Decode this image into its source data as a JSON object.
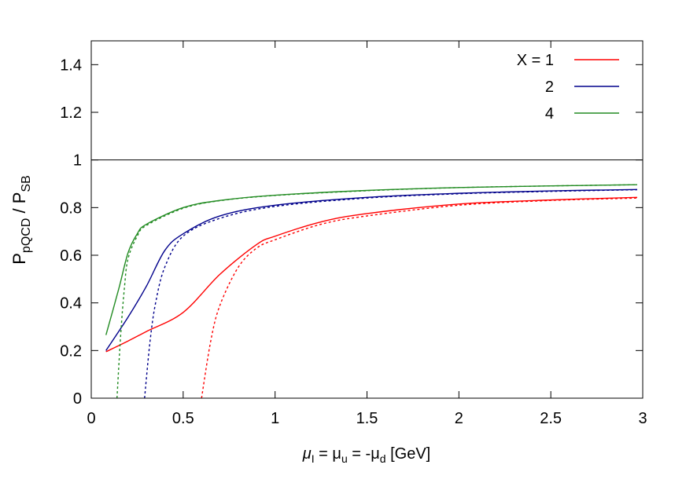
{
  "chart_data": {
    "type": "line",
    "xlabel": {
      "main": "μ",
      "sub1": "I",
      "eq1": " = μ",
      "sub2": "u",
      "eq2": " = -μ",
      "sub3": "d",
      "unit": " [GeV]"
    },
    "ylabel": {
      "p1": "P",
      "sub1": "pQCD",
      "mid": " / P",
      "sub2": "SB"
    },
    "xlim": [
      0,
      3
    ],
    "ylim": [
      0,
      1.5
    ],
    "xticks": [
      0,
      0.5,
      1,
      1.5,
      2,
      2.5,
      3
    ],
    "xtick_labels": [
      "0",
      "0.5",
      "1",
      "1.5",
      "2",
      "2.5",
      "3"
    ],
    "yticks": [
      0,
      0.2,
      0.4,
      0.6,
      0.8,
      1,
      1.2,
      1.4
    ],
    "ytick_labels": [
      "0",
      "0.2",
      "0.4",
      "0.6",
      "0.8",
      "1",
      "1.2",
      "1.4"
    ],
    "grid": false,
    "legend_placement": "top-right",
    "reference_line": {
      "y": 1,
      "color": "#000000"
    },
    "series": [
      {
        "name": "X = 1",
        "color": "#ff0000",
        "style": "solid",
        "x": [
          0.08,
          0.2,
          0.3,
          0.5,
          0.7,
          0.9,
          1.0,
          1.25,
          1.5,
          2.0,
          2.5,
          2.97
        ],
        "y": [
          0.195,
          0.24,
          0.28,
          0.36,
          0.52,
          0.645,
          0.68,
          0.74,
          0.775,
          0.815,
          0.832,
          0.843
        ]
      },
      {
        "name": "",
        "color": "#ff0000",
        "style": "dashed",
        "x": [
          0.6,
          0.65,
          0.7,
          0.8,
          0.9,
          1.0,
          1.25,
          1.5,
          2.0,
          2.5,
          2.97
        ],
        "y": [
          0.0,
          0.24,
          0.39,
          0.55,
          0.63,
          0.665,
          0.73,
          0.765,
          0.81,
          0.83,
          0.84
        ]
      },
      {
        "name": "2",
        "color": "#00008b",
        "style": "solid",
        "x": [
          0.08,
          0.2,
          0.3,
          0.4,
          0.5,
          0.7,
          1.0,
          1.5,
          2.0,
          2.5,
          2.97
        ],
        "y": [
          0.2,
          0.34,
          0.47,
          0.62,
          0.69,
          0.765,
          0.81,
          0.843,
          0.86,
          0.87,
          0.876
        ]
      },
      {
        "name": "",
        "color": "#00008b",
        "style": "dashed",
        "x": [
          0.29,
          0.32,
          0.35,
          0.4,
          0.5,
          0.7,
          1.0,
          1.5,
          2.0,
          2.5,
          2.97
        ],
        "y": [
          0.0,
          0.24,
          0.4,
          0.55,
          0.68,
          0.755,
          0.805,
          0.84,
          0.858,
          0.868,
          0.875
        ]
      },
      {
        "name": "4",
        "color": "#228b22",
        "style": "solid",
        "x": [
          0.08,
          0.15,
          0.2,
          0.25,
          0.3,
          0.5,
          0.7,
          1.0,
          1.5,
          2.0,
          2.5,
          2.97
        ],
        "y": [
          0.265,
          0.46,
          0.61,
          0.69,
          0.73,
          0.8,
          0.83,
          0.852,
          0.872,
          0.884,
          0.891,
          0.896
        ]
      },
      {
        "name": "",
        "color": "#228b22",
        "style": "dashed",
        "x": [
          0.14,
          0.16,
          0.18,
          0.2,
          0.25,
          0.3,
          0.5,
          0.7,
          1.0,
          1.5,
          2.0,
          2.5,
          2.97
        ],
        "y": [
          0.0,
          0.265,
          0.46,
          0.585,
          0.68,
          0.725,
          0.797,
          0.829,
          0.851,
          0.871,
          0.884,
          0.891,
          0.896
        ]
      }
    ]
  }
}
